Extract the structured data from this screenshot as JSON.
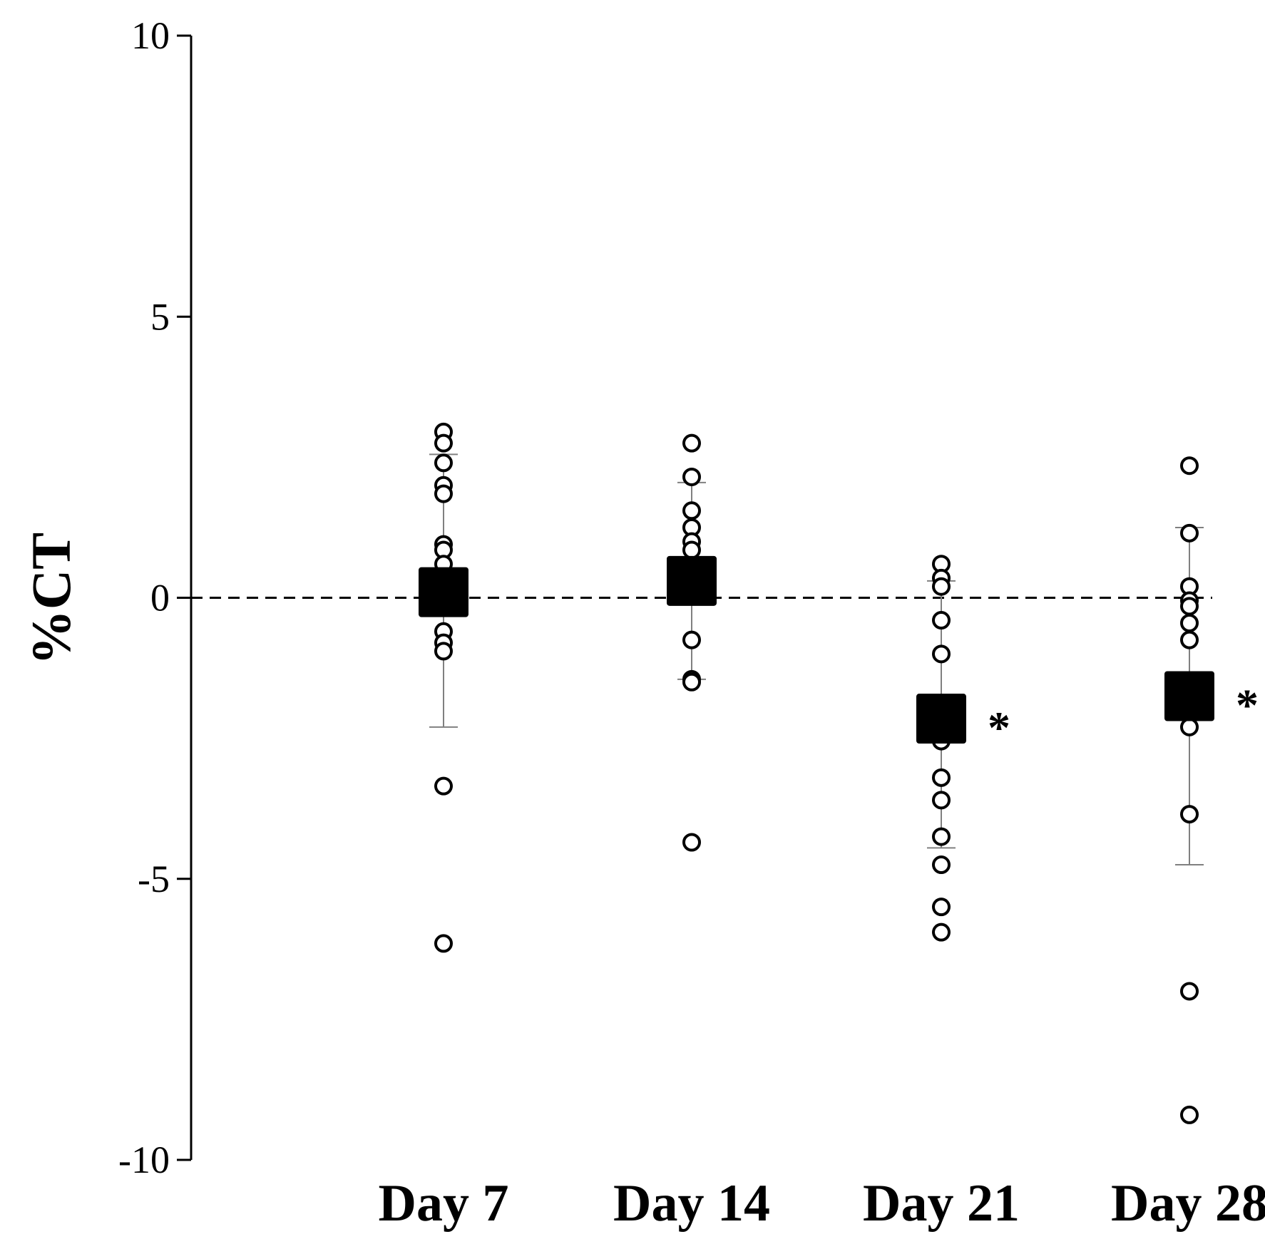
{
  "chart_data": {
    "type": "scatter",
    "title": "",
    "xlabel": "",
    "ylabel": "%CT",
    "ylim": [
      -10,
      10
    ],
    "yticks": [
      10,
      5,
      0,
      -5,
      -10
    ],
    "ytick_labels": [
      "10",
      "5",
      "0",
      "-5",
      "-10"
    ],
    "reference_line": {
      "y": 0,
      "style": "dashed"
    },
    "categories": [
      "Day 7",
      "Day 14",
      "Day 21",
      "Day 28"
    ],
    "groups": [
      {
        "name": "Day 7",
        "mean": 0.1,
        "error_low": -2.3,
        "error_high": 2.55,
        "points": [
          2.95,
          2.75,
          2.4,
          2.0,
          1.85,
          0.95,
          0.85,
          0.6,
          -0.6,
          -0.8,
          -0.95,
          -3.35,
          -6.15
        ],
        "significance": ""
      },
      {
        "name": "Day 14",
        "mean": 0.3,
        "error_low": -1.45,
        "error_high": 2.05,
        "points": [
          2.75,
          2.15,
          1.55,
          1.25,
          1.0,
          0.85,
          -0.75,
          -1.45,
          -1.5,
          -4.35
        ],
        "significance": ""
      },
      {
        "name": "Day 21",
        "mean": -2.15,
        "error_low": -4.45,
        "error_high": 0.3,
        "points": [
          0.6,
          0.35,
          0.2,
          -0.4,
          -1.0,
          -2.55,
          -3.2,
          -3.6,
          -4.25,
          -4.75,
          -5.5,
          -5.95
        ],
        "significance": "*"
      },
      {
        "name": "Day 28",
        "mean": -1.75,
        "error_low": -4.75,
        "error_high": 1.25,
        "points": [
          2.35,
          1.15,
          0.2,
          -0.05,
          -0.15,
          -0.45,
          -0.75,
          -2.3,
          -3.85,
          -7.0,
          -9.2
        ],
        "significance": "*"
      }
    ]
  }
}
